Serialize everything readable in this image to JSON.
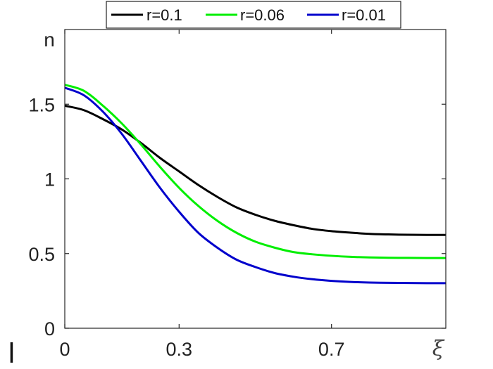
{
  "chart_data": {
    "type": "line",
    "title": "",
    "xlabel": "ξ",
    "ylabel": "n",
    "xlim": [
      0,
      1
    ],
    "ylim": [
      0,
      2
    ],
    "x_ticks": [
      {
        "value": 0,
        "label": "0"
      },
      {
        "value": 0.3,
        "label": "0.3"
      },
      {
        "value": 0.7,
        "label": "0.7"
      }
    ],
    "y_ticks": [
      {
        "value": 0,
        "label": "0"
      },
      {
        "value": 0.5,
        "label": "0.5"
      },
      {
        "value": 1,
        "label": "1"
      },
      {
        "value": 1.5,
        "label": "1.5"
      }
    ],
    "grid": false,
    "box": true,
    "legend_position": "top",
    "legend_orientation": "horizontal",
    "stray_mark": "l",
    "series": [
      {
        "name": "r=0.1",
        "color": "#000000",
        "x": [
          0,
          0.05,
          0.1,
          0.15,
          0.2,
          0.25,
          0.3,
          0.35,
          0.4,
          0.45,
          0.5,
          0.55,
          0.6,
          0.65,
          0.7,
          0.75,
          0.8,
          0.85,
          0.9,
          0.95,
          1.0
        ],
        "y": [
          1.49,
          1.46,
          1.4,
          1.33,
          1.24,
          1.14,
          1.05,
          0.96,
          0.88,
          0.81,
          0.76,
          0.72,
          0.69,
          0.665,
          0.65,
          0.64,
          0.632,
          0.628,
          0.626,
          0.625,
          0.625
        ]
      },
      {
        "name": "r=0.06",
        "color": "#00ee00",
        "x": [
          0,
          0.05,
          0.1,
          0.15,
          0.2,
          0.25,
          0.3,
          0.35,
          0.4,
          0.45,
          0.5,
          0.55,
          0.6,
          0.65,
          0.7,
          0.75,
          0.8,
          0.85,
          0.9,
          0.95,
          1.0
        ],
        "y": [
          1.63,
          1.59,
          1.49,
          1.37,
          1.23,
          1.08,
          0.94,
          0.82,
          0.72,
          0.64,
          0.58,
          0.54,
          0.51,
          0.495,
          0.485,
          0.478,
          0.474,
          0.472,
          0.471,
          0.47,
          0.47
        ]
      },
      {
        "name": "r=0.01",
        "color": "#0000cc",
        "x": [
          0,
          0.05,
          0.1,
          0.15,
          0.2,
          0.25,
          0.3,
          0.35,
          0.4,
          0.45,
          0.5,
          0.55,
          0.6,
          0.65,
          0.7,
          0.75,
          0.8,
          0.85,
          0.9,
          0.95,
          1.0
        ],
        "y": [
          1.61,
          1.56,
          1.45,
          1.3,
          1.12,
          0.94,
          0.78,
          0.64,
          0.54,
          0.46,
          0.41,
          0.37,
          0.345,
          0.328,
          0.317,
          0.31,
          0.306,
          0.304,
          0.303,
          0.302,
          0.302
        ]
      }
    ]
  }
}
